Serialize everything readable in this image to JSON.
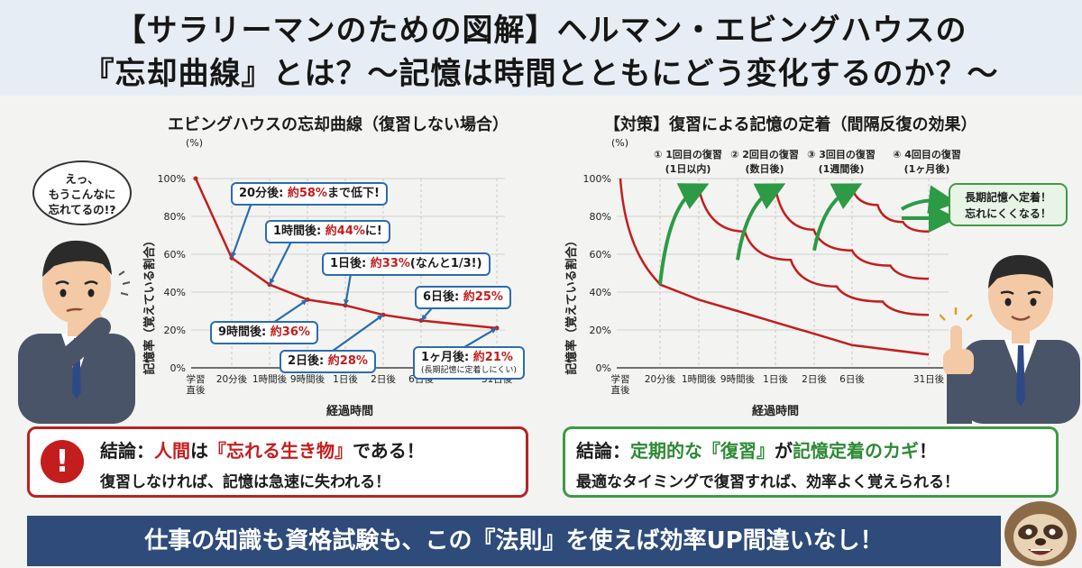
{
  "title": {
    "line1": "【サラリーマンのための図解】ヘルマン・エビングハウスの",
    "line2": "『忘却曲線』とは？〜記憶は時間とともにどう変化するのか？〜"
  },
  "left_panel": {
    "speech_bubble": [
      "えっ、",
      "もうこんなに",
      "忘れてるの!?"
    ],
    "callouts": [
      {
        "pre": "20分後: ",
        "hl": "約58%",
        "post": "まで低下!"
      },
      {
        "pre": "1時間後: ",
        "hl": "約44%",
        "post": "に!"
      },
      {
        "pre": "1日後: ",
        "hl": "約33%",
        "post": "(なんと1/3!)"
      },
      {
        "pre": "6日後: ",
        "hl": "約25%",
        "post": ""
      },
      {
        "pre": "9時間後: ",
        "hl": "約36%",
        "post": ""
      },
      {
        "pre": "2日後: ",
        "hl": "約28%",
        "post": ""
      },
      {
        "pre": "1ヶ月後: ",
        "hl": "約21%",
        "post": "",
        "sub": "(長期記憶に定着しにくい)"
      }
    ]
  },
  "right_panel": {
    "review_labels": [
      [
        "① 1回目の復習",
        "(1日以内)"
      ],
      [
        "② 2回目の復習",
        "(数日後)"
      ],
      [
        "③ 3回目の復習",
        "(1週間後)"
      ],
      [
        "④ 4回目の復習",
        "(1ヶ月後)"
      ]
    ],
    "long_term_label": [
      "長期記憶へ定着！",
      "忘れにくくなる！"
    ]
  },
  "chart_data": [
    {
      "type": "line",
      "title": "エビングハウスの忘却曲線（復習しない場合）",
      "ylabel": "記憶率（覚えている割合）",
      "yunit": "(%)",
      "xlabel": "経過時間",
      "x_ticks": [
        "学習\n直後",
        "20分後",
        "1時間後",
        "9時間後",
        "1日後",
        "2日後",
        "6日後",
        "31日後"
      ],
      "y_ticks": [
        "0%",
        "20%",
        "40%",
        "60%",
        "80%",
        "100%"
      ],
      "ylim": [
        0,
        100
      ],
      "grid": true,
      "series": [
        {
          "values": [
            100,
            58,
            44,
            36,
            33,
            28,
            25,
            21
          ]
        }
      ]
    },
    {
      "type": "line",
      "title": "【対策】復習による記憶の定着（間隔反復の効果）",
      "ylabel": "記憶率（覚えている割合）",
      "yunit": "(%)",
      "xlabel": "経過時間",
      "x_ticks": [
        "学習\n直後",
        "20分後",
        "1時間後",
        "9時間後",
        "1日後",
        "2日後",
        "6日後",
        "31日後"
      ],
      "y_ticks": [
        "0%",
        "20%",
        "40%",
        "60%",
        "80%",
        "100%"
      ],
      "ylim": [
        0,
        100
      ],
      "grid": true,
      "series": [
        {
          "values": [
            100,
            44,
            36,
            30,
            24,
            18,
            12,
            7
          ]
        },
        {
          "values": [
            95,
            72,
            57,
            43,
            35,
            28
          ]
        },
        {
          "values": [
            95,
            73,
            62,
            54,
            47
          ]
        },
        {
          "values": [
            95,
            86,
            77,
            72
          ]
        }
      ]
    }
  ],
  "conclusion_left": {
    "prefix": "結論：",
    "hl1": "人間",
    "mid": "は",
    "hl2": "『忘れる生き物』",
    "suffix": "である！",
    "line2": "復習しなければ、記憶は急速に失われる！"
  },
  "conclusion_right": {
    "prefix": "結論：",
    "hl1": "定期的な",
    "hl2": "『復習』",
    "mid": "が",
    "hl3": "記憶定着のカギ",
    "suffix": "！",
    "line2": "最適なタイミングで復習すれば、効率よく覚えられる！"
  },
  "footer": "仕事の知識も資格試験も、この『法則』を使えば効率UP間違いなし！",
  "colors": {
    "curve_red": "#c41d1d",
    "arrow_green": "#2d9a45",
    "callout_blue": "#2b6cb0",
    "footer_bg": "#2e4b7a"
  }
}
